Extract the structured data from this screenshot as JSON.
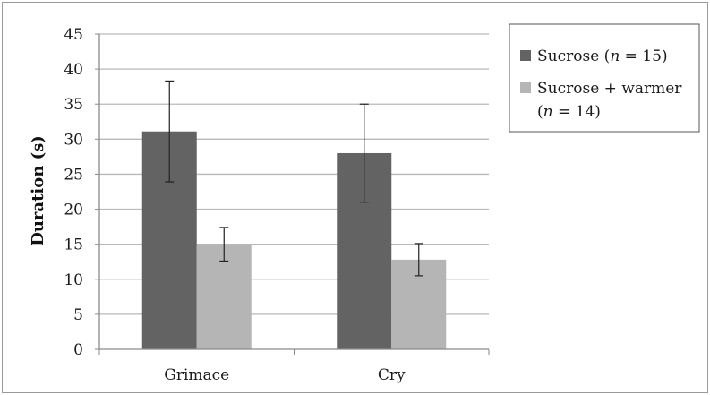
{
  "chart_data": {
    "type": "bar",
    "categories": [
      "Grimace",
      "Cry"
    ],
    "series": [
      {
        "name": "Sucrose (n = 15)",
        "values": [
          31.1,
          28.0
        ],
        "error": [
          7.2,
          7.0
        ],
        "color": "#636363"
      },
      {
        "name": "Sucrose + warmer (n = 14)",
        "values": [
          15.0,
          12.8
        ],
        "error": [
          2.4,
          2.3
        ],
        "color": "#b5b5b5"
      }
    ],
    "ylabel": "Duration (s)",
    "ylim": [
      0,
      45
    ],
    "yticks": [
      "0",
      "5",
      "10",
      "15",
      "20",
      "25",
      "30",
      "35",
      "40",
      "45"
    ],
    "grid": true,
    "legend_position": "top-right",
    "legend": {
      "series1_prefix": "Sucrose (",
      "series1_n": "n",
      "series1_suffix": " = 15)",
      "series2_line1": "Sucrose + warmer",
      "series2_prefix": "(",
      "series2_n": "n",
      "series2_suffix": " = 14)"
    }
  }
}
